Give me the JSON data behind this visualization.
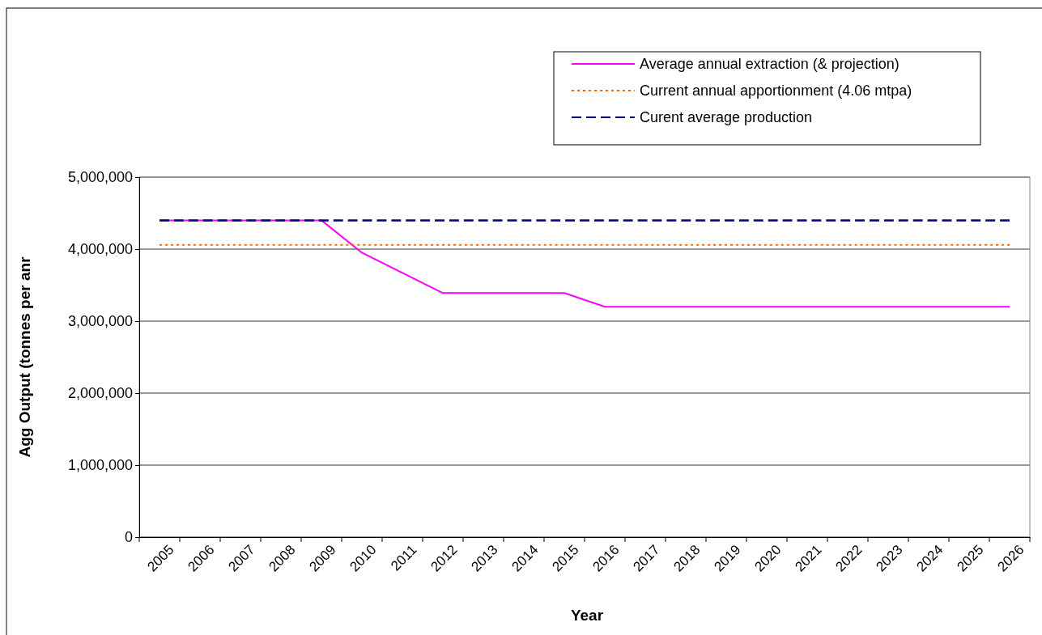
{
  "chart_data": {
    "type": "line",
    "xlabel": "Year",
    "ylabel": "Agg Output (tonnes per anr",
    "categories": [
      "2005",
      "2006",
      "2007",
      "2008",
      "2009",
      "2010",
      "2011",
      "2012",
      "2013",
      "2014",
      "2015",
      "2016",
      "2017",
      "2018",
      "2019",
      "2020",
      "2021",
      "2022",
      "2023",
      "2024",
      "2025",
      "2026"
    ],
    "series": [
      {
        "name": "Average annual extraction (& projection)",
        "color": "#ff00ff",
        "line_style": "solid",
        "values": [
          4400000,
          4400000,
          4400000,
          4400000,
          4400000,
          3950000,
          3670000,
          3390000,
          3390000,
          3390000,
          3390000,
          3200000,
          3200000,
          3200000,
          3200000,
          3200000,
          3200000,
          3200000,
          3200000,
          3200000,
          3200000,
          3200000
        ]
      },
      {
        "name": "Current annual apportionment (4.06 mtpa)",
        "color": "#ff6600",
        "line_style": "dotted",
        "values": [
          4060000,
          4060000,
          4060000,
          4060000,
          4060000,
          4060000,
          4060000,
          4060000,
          4060000,
          4060000,
          4060000,
          4060000,
          4060000,
          4060000,
          4060000,
          4060000,
          4060000,
          4060000,
          4060000,
          4060000,
          4060000,
          4060000
        ]
      },
      {
        "name": "Curent average production",
        "color": "#000080",
        "line_style": "dashed",
        "values": [
          4400000,
          4400000,
          4400000,
          4400000,
          4400000,
          4400000,
          4400000,
          4400000,
          4400000,
          4400000,
          4400000,
          4400000,
          4400000,
          4400000,
          4400000,
          4400000,
          4400000,
          4400000,
          4400000,
          4400000,
          4400000,
          4400000
        ]
      }
    ],
    "ylim": [
      0,
      5000000
    ],
    "yticks": [
      0,
      {
        "value": 1000000,
        "label": "1,000,000"
      },
      {
        "value": 2000000,
        "label": "2,000,000"
      },
      {
        "value": 3000000,
        "label": "3,000,000"
      },
      {
        "value": 4000000,
        "label": "4,000,000"
      },
      {
        "value": 5000000,
        "label": "5,000,000"
      }
    ],
    "grid": "y",
    "legend": "top right"
  }
}
